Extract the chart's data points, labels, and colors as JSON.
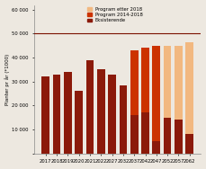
{
  "categories": [
    "2017",
    "2018",
    "2019",
    "2020",
    "2021",
    "2022",
    "2027",
    "2032",
    "2037",
    "2042",
    "2047",
    "2052",
    "2057",
    "2062"
  ],
  "eksisterende": [
    32000,
    33000,
    34000,
    26000,
    39000,
    35000,
    33000,
    28500,
    16000,
    17000,
    5000,
    15000,
    14000,
    8000
  ],
  "program_2014_2018": [
    0,
    0,
    0,
    0,
    0,
    0,
    0,
    0,
    27000,
    27000,
    40000,
    0,
    0,
    0
  ],
  "program_etter_2018": [
    0,
    0,
    0,
    0,
    0,
    0,
    0,
    0,
    0,
    0,
    0,
    30000,
    31000,
    38500
  ],
  "color_eksisterende": "#8B1A0A",
  "color_2014_2018": "#CC3300",
  "color_etter_2018": "#F2B880",
  "hline_y": 50000,
  "hline_color": "#7B1000",
  "ylabel": "Planter pr år (*1000)",
  "ylim": [
    0,
    62000
  ],
  "yticks": [
    0,
    10000,
    20000,
    30000,
    40000,
    50000,
    60000
  ],
  "ytick_labels": [
    "",
    "10 000",
    "20 000",
    "30 000",
    "40 000",
    "50 000",
    "60 000"
  ],
  "legend_labels": [
    "Program etter 2018",
    "Program 2014-2018",
    "Eksisterende"
  ],
  "legend_colors": [
    "#F2B880",
    "#CC3300",
    "#8B1A0A"
  ],
  "bg_color": "#EDE8E0",
  "axis_fontsize": 4.0,
  "tick_fontsize": 3.8,
  "legend_fontsize": 3.8
}
